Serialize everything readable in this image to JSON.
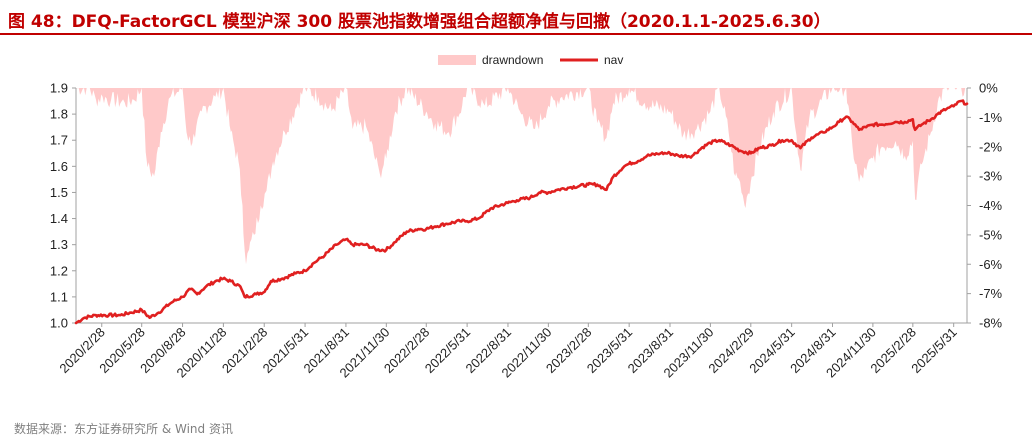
{
  "title": "图 48：DFQ-FactorGCL 模型沪深 300 股票池指数增强组合超额净值与回撤（2020.1.1-2025.6.30）",
  "source": "数据来源：东方证券研究所 & Wind 资讯",
  "colors": {
    "title": "#c00000",
    "nav": "#e02020",
    "drawdown": "#ffc9c9"
  },
  "chart_data": {
    "type": "line",
    "legend": {
      "position": "top-center",
      "entries": [
        "drawndown",
        "nav"
      ]
    },
    "x_ticks": [
      "2020/2/28",
      "2020/5/28",
      "2020/8/28",
      "2020/11/28",
      "2021/2/28",
      "2021/5/31",
      "2021/8/31",
      "2021/11/30",
      "2022/2/28",
      "2022/5/31",
      "2022/8/31",
      "2022/11/30",
      "2023/2/28",
      "2023/5/31",
      "2023/8/31",
      "2023/11/30",
      "2024/2/29",
      "2024/5/31",
      "2024/8/31",
      "2024/11/30",
      "2025/2/28",
      "2025/5/31"
    ],
    "y_left": {
      "ylim": [
        1.0,
        1.9
      ],
      "ticks": [
        "1.0",
        "1.1",
        "1.2",
        "1.3",
        "1.4",
        "1.5",
        "1.6",
        "1.7",
        "1.8",
        "1.9"
      ]
    },
    "y_right": {
      "ylim": [
        -8,
        0
      ],
      "ticks": [
        "0%",
        "-1%",
        "-2%",
        "-3%",
        "-4%",
        "-5%",
        "-6%",
        "-7%",
        "-8%"
      ]
    },
    "x_range": [
      "2020-01-01",
      "2025-06-30"
    ],
    "series": [
      {
        "name": "nav",
        "axis": "left",
        "points": [
          [
            "2020-01-01",
            1.0
          ],
          [
            "2020-01-20",
            1.02
          ],
          [
            "2020-02-15",
            1.03
          ],
          [
            "2020-03-15",
            1.03
          ],
          [
            "2020-04-10",
            1.03
          ],
          [
            "2020-05-05",
            1.04
          ],
          [
            "2020-05-28",
            1.05
          ],
          [
            "2020-06-15",
            1.02
          ],
          [
            "2020-07-05",
            1.04
          ],
          [
            "2020-08-05",
            1.08
          ],
          [
            "2020-08-28",
            1.1
          ],
          [
            "2020-09-15",
            1.13
          ],
          [
            "2020-09-30",
            1.11
          ],
          [
            "2020-10-20",
            1.14
          ],
          [
            "2020-11-10",
            1.16
          ],
          [
            "2020-11-28",
            1.17
          ],
          [
            "2020-12-15",
            1.16
          ],
          [
            "2021-01-05",
            1.14
          ],
          [
            "2021-01-15",
            1.1
          ],
          [
            "2021-02-10",
            1.11
          ],
          [
            "2021-03-01",
            1.12
          ],
          [
            "2021-03-15",
            1.16
          ],
          [
            "2021-04-10",
            1.17
          ],
          [
            "2021-05-10",
            1.19
          ],
          [
            "2021-05-31",
            1.2
          ],
          [
            "2021-06-20",
            1.23
          ],
          [
            "2021-07-15",
            1.26
          ],
          [
            "2021-08-10",
            1.3
          ],
          [
            "2021-08-31",
            1.32
          ],
          [
            "2021-09-15",
            1.3
          ],
          [
            "2021-10-15",
            1.3
          ],
          [
            "2021-11-10",
            1.28
          ],
          [
            "2021-11-30",
            1.28
          ],
          [
            "2021-12-20",
            1.31
          ],
          [
            "2022-01-15",
            1.35
          ],
          [
            "2022-02-10",
            1.36
          ],
          [
            "2022-02-28",
            1.36
          ],
          [
            "2022-03-20",
            1.37
          ],
          [
            "2022-04-15",
            1.38
          ],
          [
            "2022-05-15",
            1.39
          ],
          [
            "2022-05-31",
            1.39
          ],
          [
            "2022-06-25",
            1.4
          ],
          [
            "2022-07-25",
            1.44
          ],
          [
            "2022-08-31",
            1.46
          ],
          [
            "2022-09-20",
            1.47
          ],
          [
            "2022-10-20",
            1.48
          ],
          [
            "2022-11-10",
            1.5
          ],
          [
            "2022-11-30",
            1.5
          ],
          [
            "2022-12-20",
            1.51
          ],
          [
            "2023-01-20",
            1.52
          ],
          [
            "2023-02-28",
            1.53
          ],
          [
            "2023-03-20",
            1.53
          ],
          [
            "2023-04-10",
            1.51
          ],
          [
            "2023-04-25",
            1.56
          ],
          [
            "2023-05-20",
            1.6
          ],
          [
            "2023-05-31",
            1.61
          ],
          [
            "2023-06-20",
            1.62
          ],
          [
            "2023-07-10",
            1.64
          ],
          [
            "2023-08-10",
            1.65
          ],
          [
            "2023-08-31",
            1.65
          ],
          [
            "2023-09-20",
            1.64
          ],
          [
            "2023-10-20",
            1.64
          ],
          [
            "2023-11-10",
            1.67
          ],
          [
            "2023-11-30",
            1.69
          ],
          [
            "2023-12-20",
            1.7
          ],
          [
            "2024-01-15",
            1.68
          ],
          [
            "2024-02-05",
            1.66
          ],
          [
            "2024-02-29",
            1.65
          ],
          [
            "2024-03-20",
            1.67
          ],
          [
            "2024-04-15",
            1.68
          ],
          [
            "2024-05-10",
            1.7
          ],
          [
            "2024-05-31",
            1.7
          ],
          [
            "2024-06-20",
            1.67
          ],
          [
            "2024-07-15",
            1.71
          ],
          [
            "2024-08-10",
            1.73
          ],
          [
            "2024-08-31",
            1.75
          ],
          [
            "2024-09-15",
            1.77
          ],
          [
            "2024-10-01",
            1.79
          ],
          [
            "2024-10-15",
            1.77
          ],
          [
            "2024-10-30",
            1.74
          ],
          [
            "2024-11-15",
            1.75
          ],
          [
            "2024-11-30",
            1.76
          ],
          [
            "2024-12-20",
            1.76
          ],
          [
            "2025-01-20",
            1.77
          ],
          [
            "2025-02-10",
            1.77
          ],
          [
            "2025-02-28",
            1.78
          ],
          [
            "2025-03-05",
            1.74
          ],
          [
            "2025-03-20",
            1.76
          ],
          [
            "2025-04-10",
            1.78
          ],
          [
            "2025-04-25",
            1.8
          ],
          [
            "2025-05-15",
            1.82
          ],
          [
            "2025-05-31",
            1.83
          ],
          [
            "2025-06-15",
            1.85
          ],
          [
            "2025-06-30",
            1.84
          ]
        ]
      },
      {
        "name": "drawndown",
        "axis": "right",
        "points": [
          [
            "2020-01-01",
            0
          ],
          [
            "2020-02-01",
            0
          ],
          [
            "2020-02-15",
            -0.4
          ],
          [
            "2020-03-01",
            -0.3
          ],
          [
            "2020-03-20",
            -0.4
          ],
          [
            "2020-04-20",
            -0.5
          ],
          [
            "2020-05-10",
            -0.4
          ],
          [
            "2020-05-28",
            0
          ],
          [
            "2020-06-10",
            -2.7
          ],
          [
            "2020-06-25",
            -3.0
          ],
          [
            "2020-07-10",
            -1.5
          ],
          [
            "2020-08-01",
            -0.3
          ],
          [
            "2020-08-28",
            0
          ],
          [
            "2020-09-10",
            -1.8
          ],
          [
            "2020-09-25",
            -1.7
          ],
          [
            "2020-10-10",
            -0.8
          ],
          [
            "2020-11-10",
            -0.3
          ],
          [
            "2020-11-28",
            0
          ],
          [
            "2020-12-15",
            -1.5
          ],
          [
            "2021-01-01",
            -2.5
          ],
          [
            "2021-01-10",
            -4.0
          ],
          [
            "2021-01-18",
            -6.0
          ],
          [
            "2021-01-25",
            -5.5
          ],
          [
            "2021-02-05",
            -5.0
          ],
          [
            "2021-02-20",
            -4.0
          ],
          [
            "2021-03-05",
            -3.5
          ],
          [
            "2021-03-20",
            -2.5
          ],
          [
            "2021-04-15",
            -1.5
          ],
          [
            "2021-05-15",
            -0.5
          ],
          [
            "2021-05-31",
            0
          ],
          [
            "2021-06-30",
            -0.3
          ],
          [
            "2021-07-30",
            -0.8
          ],
          [
            "2021-08-31",
            0
          ],
          [
            "2021-09-15",
            -1.4
          ],
          [
            "2021-10-15",
            -1.3
          ],
          [
            "2021-11-15",
            -2.9
          ],
          [
            "2021-11-30",
            -2.4
          ],
          [
            "2021-12-20",
            -0.8
          ],
          [
            "2022-01-15",
            0
          ],
          [
            "2022-02-28",
            -0.8
          ],
          [
            "2022-03-20",
            -1.2
          ],
          [
            "2022-04-20",
            -1.5
          ],
          [
            "2022-05-20",
            -0.6
          ],
          [
            "2022-05-31",
            0
          ],
          [
            "2022-07-10",
            -0.6
          ],
          [
            "2022-08-31",
            0
          ],
          [
            "2022-09-30",
            -0.9
          ],
          [
            "2022-10-31",
            -1.4
          ],
          [
            "2022-11-30",
            -0.6
          ],
          [
            "2022-12-31",
            -0.3
          ],
          [
            "2023-02-28",
            0
          ],
          [
            "2023-03-20",
            -1.2
          ],
          [
            "2023-04-10",
            -1.7
          ],
          [
            "2023-04-25",
            -0.5
          ],
          [
            "2023-05-31",
            0
          ],
          [
            "2023-07-05",
            -0.5
          ],
          [
            "2023-08-31",
            -0.8
          ],
          [
            "2023-09-30",
            -1.6
          ],
          [
            "2023-10-30",
            -1.4
          ],
          [
            "2023-11-30",
            -0.8
          ],
          [
            "2023-12-20",
            0
          ],
          [
            "2024-01-10",
            -1.5
          ],
          [
            "2024-01-25",
            -3.0
          ],
          [
            "2024-02-05",
            -3.2
          ],
          [
            "2024-02-15",
            -4.0
          ],
          [
            "2024-02-29",
            -3.2
          ],
          [
            "2024-03-20",
            -2.0
          ],
          [
            "2024-04-20",
            -0.8
          ],
          [
            "2024-05-31",
            0
          ],
          [
            "2024-06-20",
            -2.8
          ],
          [
            "2024-07-10",
            -1.0
          ],
          [
            "2024-08-31",
            0
          ],
          [
            "2024-10-01",
            0
          ],
          [
            "2024-10-15",
            -2.0
          ],
          [
            "2024-10-30",
            -3.2
          ],
          [
            "2024-11-15",
            -2.8
          ],
          [
            "2024-11-30",
            -2.4
          ],
          [
            "2024-12-20",
            -2.0
          ],
          [
            "2025-01-20",
            -1.8
          ],
          [
            "2025-02-10",
            -2.3
          ],
          [
            "2025-02-28",
            -1.8
          ],
          [
            "2025-03-05",
            -3.8
          ],
          [
            "2025-03-20",
            -2.6
          ],
          [
            "2025-04-10",
            -1.5
          ],
          [
            "2025-04-25",
            -0.5
          ],
          [
            "2025-05-15",
            0
          ],
          [
            "2025-06-30",
            0
          ]
        ]
      }
    ]
  }
}
